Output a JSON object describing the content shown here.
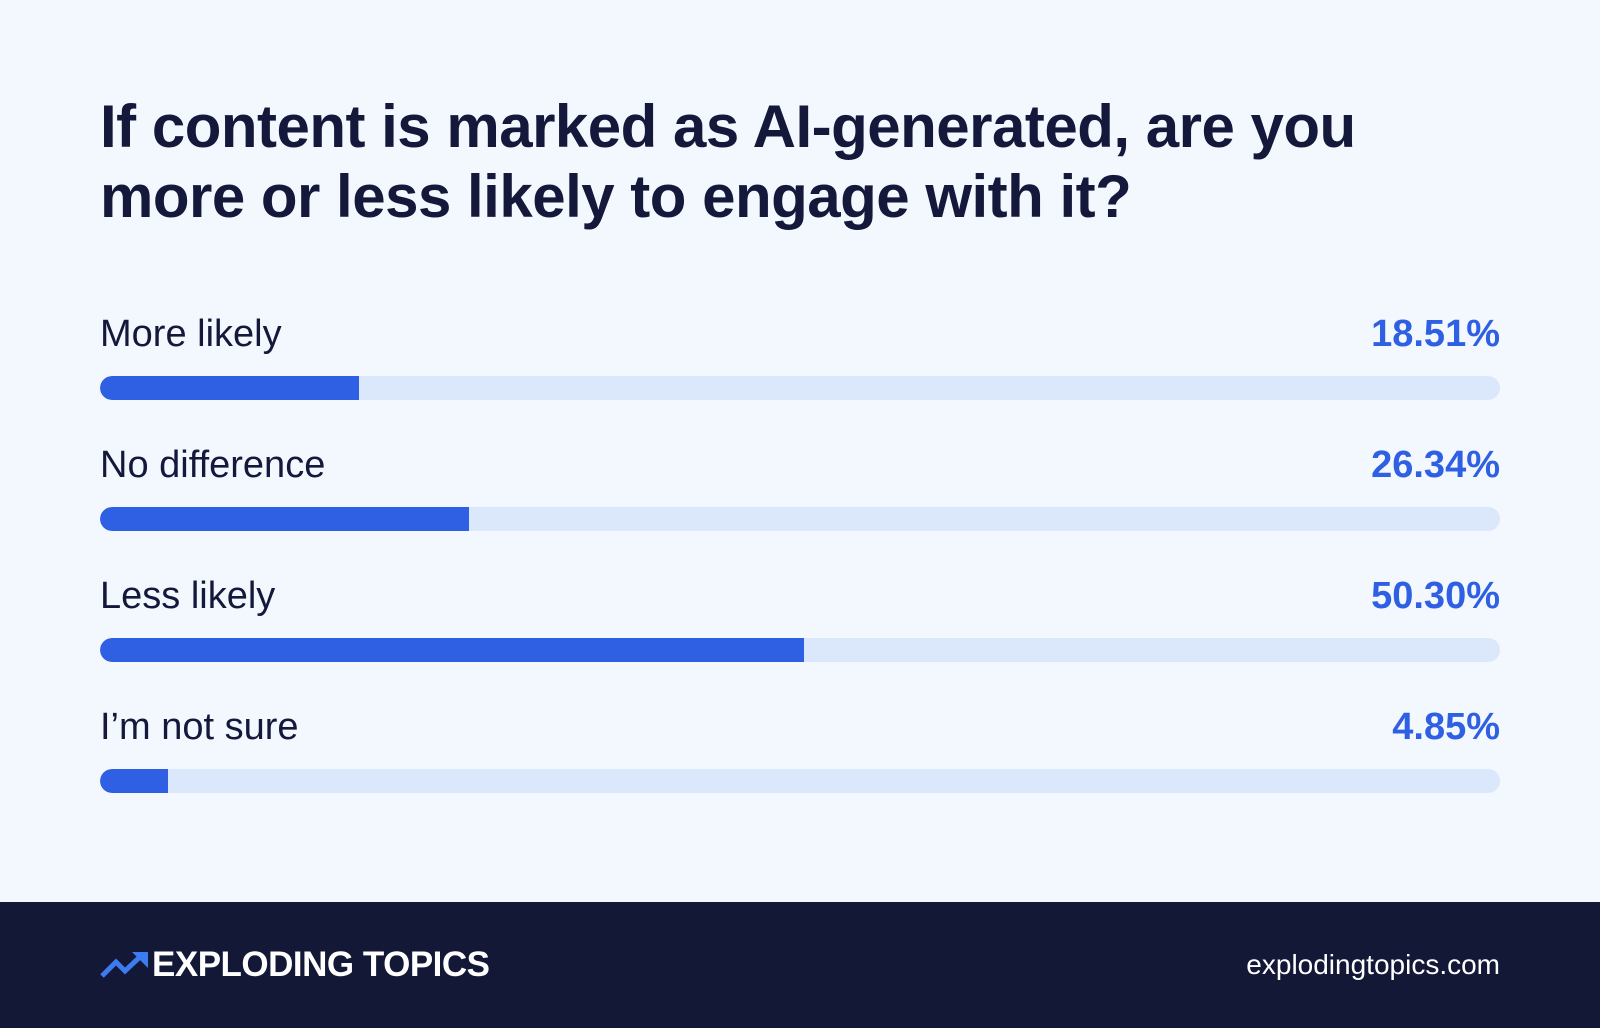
{
  "chart_data": {
    "type": "bar",
    "orientation": "horizontal",
    "title": "If content is marked as AI-generated, are you more or less likely to engage with it?",
    "categories": [
      "More likely",
      "No difference",
      "Less likely",
      "I’m not sure"
    ],
    "values": [
      18.51,
      26.34,
      50.3,
      4.85
    ],
    "value_labels": [
      "18.51%",
      "26.34%",
      "50.30%",
      "4.85%"
    ],
    "unit": "%",
    "xlim": [
      0,
      100
    ],
    "xlabel": "",
    "ylabel": "",
    "colors": {
      "bar": "#2F5FE3",
      "track": "#DBE7FB",
      "value_text": "#2F5FE3",
      "label_text": "#14183A"
    }
  },
  "footer": {
    "brand_name": "EXPLODING TOPICS",
    "brand_icon": "trending-up-arrow-icon",
    "website": "explodingtopics.com",
    "background": "#141837"
  },
  "page": {
    "background": "#F3F8FE"
  }
}
